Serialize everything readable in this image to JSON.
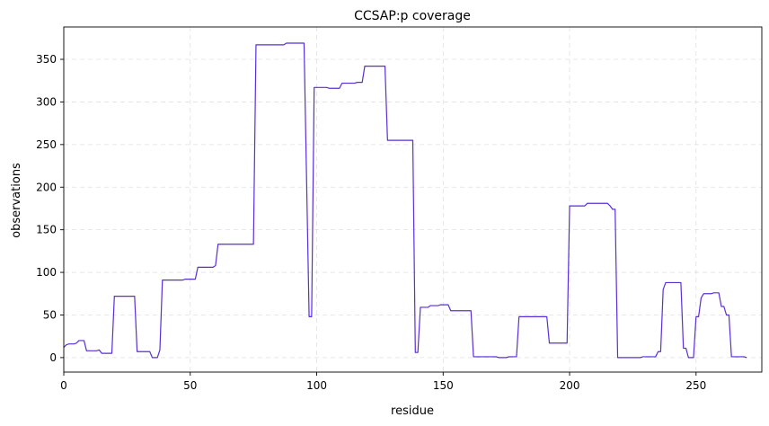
{
  "chart_data": {
    "type": "line",
    "title": "CCSAP:p coverage",
    "xlabel": "residue",
    "ylabel": "observations",
    "xlim": [
      0,
      276
    ],
    "ylim": [
      -17,
      388
    ],
    "xticks": [
      0,
      50,
      100,
      150,
      200,
      250
    ],
    "yticks": [
      0,
      50,
      100,
      150,
      200,
      250,
      300,
      350
    ],
    "grid": true,
    "line_color": "#5a2ed6",
    "series": [
      {
        "name": "",
        "points": [
          [
            0,
            12
          ],
          [
            1,
            15
          ],
          [
            2,
            16
          ],
          [
            4,
            16
          ],
          [
            5,
            17
          ],
          [
            6,
            20
          ],
          [
            8,
            20
          ],
          [
            9,
            8
          ],
          [
            13,
            8
          ],
          [
            14,
            9
          ],
          [
            15,
            5
          ],
          [
            19,
            5
          ],
          [
            20,
            72
          ],
          [
            28,
            72
          ],
          [
            29,
            7
          ],
          [
            34,
            7
          ],
          [
            35,
            0
          ],
          [
            37,
            0
          ],
          [
            38,
            9
          ],
          [
            39,
            91
          ],
          [
            47,
            91
          ],
          [
            48,
            92
          ],
          [
            52,
            92
          ],
          [
            53,
            106
          ],
          [
            59,
            106
          ],
          [
            60,
            108
          ],
          [
            61,
            133
          ],
          [
            75,
            133
          ],
          [
            76,
            367
          ],
          [
            87,
            367
          ],
          [
            88,
            369
          ],
          [
            95,
            369
          ],
          [
            97,
            48
          ],
          [
            98,
            48
          ],
          [
            99,
            317
          ],
          [
            104,
            317
          ],
          [
            105,
            316
          ],
          [
            109,
            316
          ],
          [
            110,
            322
          ],
          [
            115,
            322
          ],
          [
            116,
            323
          ],
          [
            118,
            323
          ],
          [
            119,
            342
          ],
          [
            127,
            342
          ],
          [
            128,
            255
          ],
          [
            138,
            255
          ],
          [
            139,
            6
          ],
          [
            140,
            6
          ],
          [
            141,
            59
          ],
          [
            144,
            59
          ],
          [
            145,
            61
          ],
          [
            148,
            61
          ],
          [
            149,
            62
          ],
          [
            152,
            62
          ],
          [
            153,
            55
          ],
          [
            161,
            55
          ],
          [
            162,
            1
          ],
          [
            171,
            1
          ],
          [
            172,
            0
          ],
          [
            175,
            0
          ],
          [
            176,
            1
          ],
          [
            179,
            1
          ],
          [
            180,
            48
          ],
          [
            191,
            48
          ],
          [
            192,
            17
          ],
          [
            199,
            17
          ],
          [
            200,
            178
          ],
          [
            206,
            178
          ],
          [
            207,
            181
          ],
          [
            215,
            181
          ],
          [
            216,
            178
          ],
          [
            217,
            174
          ],
          [
            218,
            174
          ],
          [
            219,
            0
          ],
          [
            228,
            0
          ],
          [
            229,
            1
          ],
          [
            234,
            1
          ],
          [
            235,
            7
          ],
          [
            236,
            7
          ],
          [
            237,
            80
          ],
          [
            238,
            88
          ],
          [
            244,
            88
          ],
          [
            245,
            11
          ],
          [
            246,
            11
          ],
          [
            247,
            0
          ],
          [
            249,
            0
          ],
          [
            250,
            48
          ],
          [
            251,
            48
          ],
          [
            252,
            70
          ],
          [
            253,
            75
          ],
          [
            256,
            75
          ],
          [
            257,
            76
          ],
          [
            259,
            76
          ],
          [
            260,
            60
          ],
          [
            261,
            60
          ],
          [
            262,
            50
          ],
          [
            263,
            50
          ],
          [
            264,
            1
          ],
          [
            268,
            1
          ],
          [
            269,
            1
          ],
          [
            270,
            0
          ]
        ]
      }
    ]
  }
}
